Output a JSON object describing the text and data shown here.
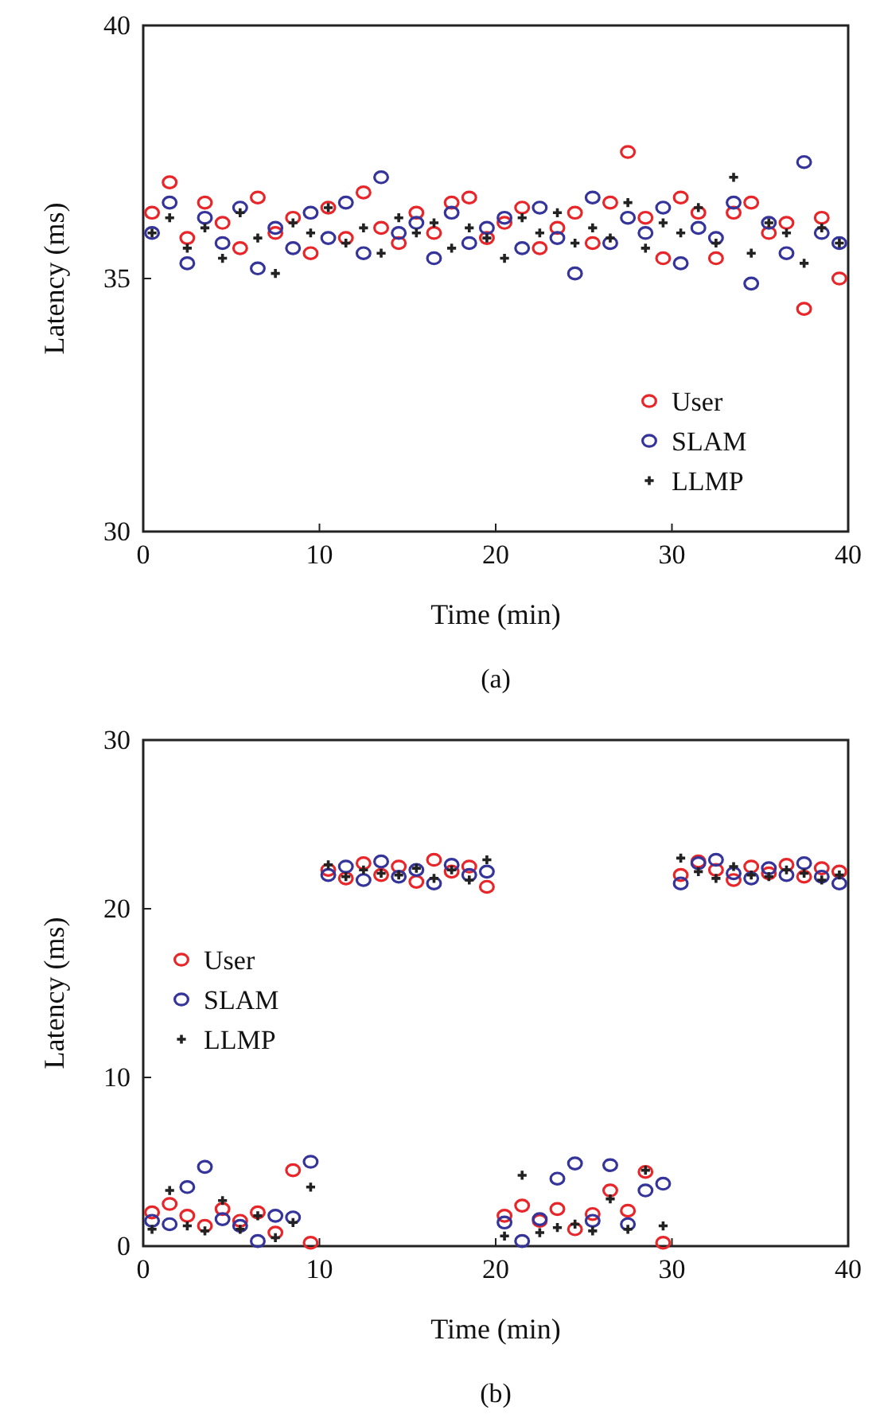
{
  "chart_data": [
    {
      "type": "scatter",
      "xlabel": "Time (min)",
      "ylabel": "Latency (ms)",
      "annotations": [
        "(a)"
      ],
      "xlim": [
        0,
        40
      ],
      "xticks": [
        0,
        10,
        20,
        30,
        40
      ],
      "ylim": [
        30,
        40
      ],
      "yticks": [
        30,
        35,
        40
      ],
      "legend": "bottom right",
      "x": [
        0.5,
        1.5,
        2.5,
        3.5,
        4.5,
        5.5,
        6.5,
        7.5,
        8.5,
        9.5,
        10.5,
        11.5,
        12.5,
        13.5,
        14.5,
        15.5,
        16.5,
        17.5,
        18.5,
        19.5,
        20.5,
        21.5,
        22.5,
        23.5,
        24.5,
        25.5,
        26.5,
        27.5,
        28.5,
        29.5,
        30.5,
        31.5,
        32.5,
        33.5,
        34.5,
        35.5,
        36.5,
        37.5,
        38.5,
        39.5
      ],
      "series": [
        {
          "name": "User",
          "color": "#e8262a",
          "marker": "circle",
          "values": [
            36.3,
            36.9,
            35.8,
            36.5,
            36.1,
            35.6,
            36.6,
            35.9,
            36.2,
            35.5,
            36.4,
            35.8,
            36.7,
            36.0,
            35.7,
            36.3,
            35.9,
            36.5,
            36.6,
            35.8,
            36.1,
            36.4,
            35.6,
            36.0,
            36.3,
            35.7,
            36.5,
            37.5,
            36.2,
            35.4,
            36.6,
            36.3,
            35.4,
            36.3,
            36.5,
            35.9,
            36.1,
            34.4,
            36.2,
            35.0
          ]
        },
        {
          "name": "SLAM",
          "color": "#34349a",
          "marker": "circle",
          "values": [
            35.9,
            36.5,
            35.3,
            36.2,
            35.7,
            36.4,
            35.2,
            36.0,
            35.6,
            36.3,
            35.8,
            36.5,
            35.5,
            37.0,
            35.9,
            36.1,
            35.4,
            36.3,
            35.7,
            36.0,
            36.2,
            35.6,
            36.4,
            35.8,
            35.1,
            36.6,
            35.7,
            36.2,
            35.9,
            36.4,
            35.3,
            36.0,
            35.8,
            36.5,
            34.9,
            36.1,
            35.5,
            37.3,
            35.9,
            35.7
          ]
        },
        {
          "name": "LLMP",
          "color": "#222222",
          "marker": "cross",
          "values": [
            35.9,
            36.2,
            35.6,
            36.0,
            35.4,
            36.3,
            35.8,
            35.1,
            36.1,
            35.9,
            36.4,
            35.7,
            36.0,
            35.5,
            36.2,
            35.9,
            36.1,
            35.6,
            36.0,
            35.8,
            35.4,
            36.2,
            35.9,
            36.3,
            35.7,
            36.0,
            35.8,
            36.5,
            35.6,
            36.1,
            35.9,
            36.4,
            35.7,
            37.0,
            35.5,
            36.1,
            35.9,
            35.3,
            36.0,
            35.7
          ]
        }
      ]
    },
    {
      "type": "scatter",
      "xlabel": "Time (min)",
      "ylabel": "Latency (ms)",
      "annotations": [
        "(b)"
      ],
      "xlim": [
        0,
        40
      ],
      "xticks": [
        0,
        10,
        20,
        30,
        40
      ],
      "ylim": [
        0,
        30
      ],
      "yticks": [
        0,
        10,
        20,
        30
      ],
      "legend": "left",
      "x": [
        0.5,
        1.5,
        2.5,
        3.5,
        4.5,
        5.5,
        6.5,
        7.5,
        8.5,
        9.5,
        10.5,
        11.5,
        12.5,
        13.5,
        14.5,
        15.5,
        16.5,
        17.5,
        18.5,
        19.5,
        20.5,
        21.5,
        22.5,
        23.5,
        24.5,
        25.5,
        26.5,
        27.5,
        28.5,
        29.5,
        30.5,
        31.5,
        32.5,
        33.5,
        34.5,
        35.5,
        36.5,
        37.5,
        38.5,
        39.5
      ],
      "series": [
        {
          "name": "User",
          "color": "#e8262a",
          "marker": "circle",
          "values": [
            2.0,
            2.5,
            1.8,
            1.2,
            2.2,
            1.5,
            2.0,
            0.8,
            4.5,
            0.2,
            22.3,
            21.8,
            22.7,
            22.0,
            22.5,
            21.6,
            22.9,
            22.2,
            22.5,
            21.3,
            1.8,
            2.4,
            1.5,
            2.2,
            1.0,
            1.9,
            3.3,
            2.1,
            4.4,
            0.2,
            22.0,
            22.8,
            22.3,
            21.7,
            22.5,
            22.1,
            22.6,
            21.9,
            22.4,
            22.2
          ]
        },
        {
          "name": "SLAM",
          "color": "#34349a",
          "marker": "circle",
          "values": [
            1.5,
            1.3,
            3.5,
            4.7,
            1.6,
            1.2,
            0.3,
            1.8,
            1.7,
            5.0,
            22.0,
            22.5,
            21.7,
            22.8,
            21.9,
            22.3,
            21.5,
            22.6,
            22.0,
            22.2,
            1.4,
            0.3,
            1.6,
            4.0,
            4.9,
            1.5,
            4.8,
            1.3,
            3.3,
            3.7,
            21.5,
            22.7,
            22.9,
            22.1,
            21.8,
            22.4,
            22.0,
            22.7,
            21.9,
            21.5
          ]
        },
        {
          "name": "LLMP",
          "color": "#222222",
          "marker": "cross",
          "values": [
            1.0,
            3.3,
            1.2,
            0.9,
            2.7,
            1.0,
            1.8,
            0.5,
            1.4,
            3.5,
            22.6,
            21.9,
            22.3,
            22.1,
            22.0,
            22.4,
            21.8,
            22.3,
            21.7,
            22.9,
            0.6,
            4.2,
            0.8,
            1.1,
            1.3,
            0.9,
            2.8,
            1.0,
            4.5,
            1.2,
            23.0,
            22.2,
            21.8,
            22.5,
            22.0,
            21.9,
            22.3,
            22.1,
            21.7,
            22.0
          ]
        }
      ]
    }
  ]
}
